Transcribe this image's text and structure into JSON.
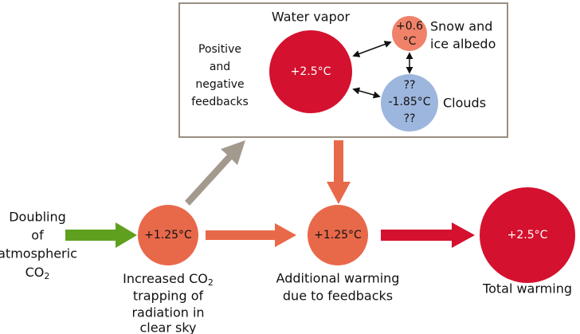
{
  "feedback_box": {
    "label": [
      "Positive",
      "and",
      "negative",
      "feedbacks"
    ]
  },
  "nodes": [
    {
      "id": "water_vapor",
      "title": "Water vapor",
      "value": "+2.5°C"
    },
    {
      "id": "snow_ice",
      "value": [
        "+0.6",
        "°C"
      ],
      "title": [
        "Snow and",
        "ice albedo"
      ]
    },
    {
      "id": "clouds",
      "value": [
        "??",
        "-1.85°C",
        "??"
      ],
      "title": "Clouds"
    },
    {
      "id": "co2_trapping",
      "value": "+1.25°C",
      "caption": {
        "lines": [
          "Increased CO",
          "trapping of",
          "radiation in",
          "clear sky"
        ],
        "subscript": "2"
      }
    },
    {
      "id": "additional",
      "value": "+1.25°C",
      "caption": [
        "Additional warming",
        "due to feedbacks"
      ]
    },
    {
      "id": "total",
      "value": "+2.5°C",
      "caption": "Total warming"
    }
  ],
  "input": {
    "lines": [
      "Doubling",
      "of",
      "atmospheric",
      "CO"
    ],
    "subscript": "2"
  }
}
